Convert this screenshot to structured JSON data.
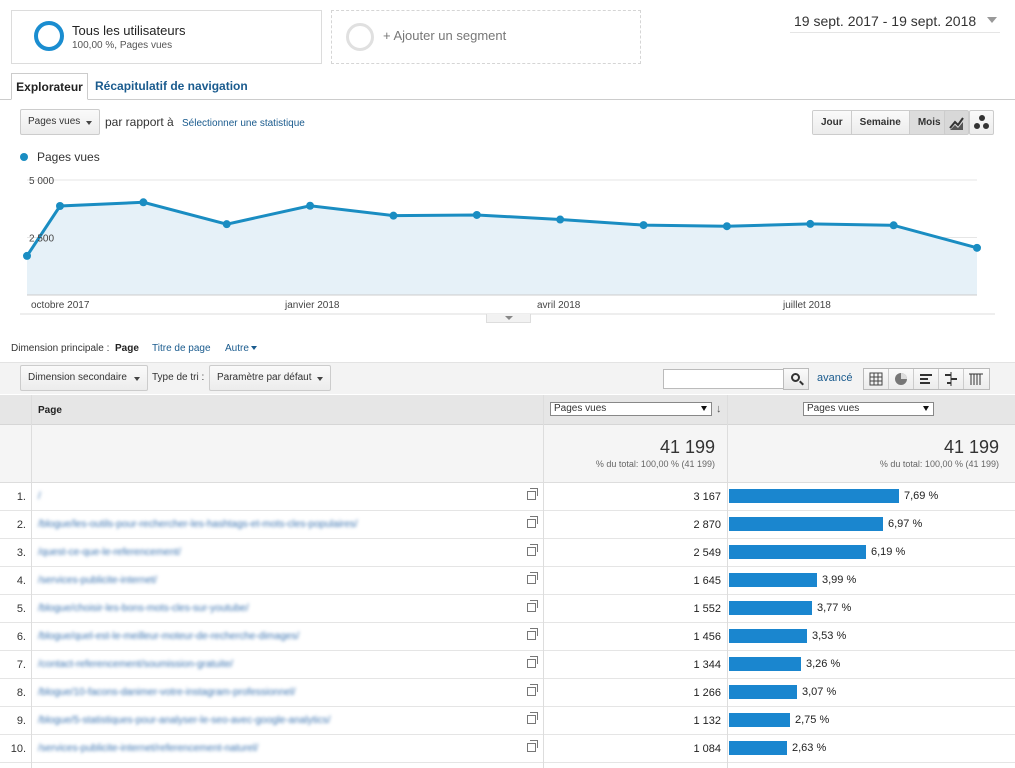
{
  "segments": {
    "active": {
      "title": "Tous les utilisateurs",
      "subtitle": "100,00 %, Pages vues"
    },
    "add_label": "+ Ajouter un segment"
  },
  "date_range": "19 sept. 2017 - 19 sept. 2018",
  "tabs": [
    {
      "label": "Explorateur",
      "active": true
    },
    {
      "label": "Récapitulatif de navigation",
      "active": false
    }
  ],
  "controls": {
    "metric_select": "Pages vues",
    "compare_label": "par rapport à",
    "select_stat": "Sélectionner une statistique",
    "granularity": [
      {
        "label": "Jour",
        "active": false
      },
      {
        "label": "Semaine",
        "active": false
      },
      {
        "label": "Mois",
        "active": true
      }
    ],
    "chart_type_icons": [
      "line-chart-icon",
      "motion-chart-icon"
    ]
  },
  "chart_data": {
    "type": "area",
    "series": [
      {
        "name": "Pages vues",
        "values": [
          1700,
          3870,
          4030,
          3080,
          3880,
          3450,
          3480,
          3280,
          3040,
          2990,
          3090,
          3030,
          2050
        ]
      }
    ],
    "x": [
      "2017-09-19",
      "2017-10",
      "2017-11",
      "2017-12",
      "2018-01",
      "2018-02",
      "2018-03",
      "2018-04",
      "2018-05",
      "2018-06",
      "2018-07",
      "2018-08",
      "2018-09"
    ],
    "x_tick_labels": [
      "octobre 2017",
      "janvier 2018",
      "avril 2018",
      "juillet 2018"
    ],
    "y_tick_labels": [
      "5 000",
      "2 500"
    ],
    "ylim": [
      0,
      5000
    ],
    "color": "#1a8dc2",
    "fill": "#e6f1f8",
    "grid": true,
    "legend": "top-left"
  },
  "dimension": {
    "label": "Dimension principale :",
    "current": "Page",
    "options": [
      "Titre de page",
      "Autre"
    ]
  },
  "toolbar": {
    "secondary_dim": "Dimension secondaire",
    "sort_label": "Type de tri :",
    "sort_value": "Paramètre par défaut",
    "search_placeholder": "",
    "advanced": "avancé",
    "view_icons": [
      "table-view-icon",
      "pie-view-icon",
      "performance-view-icon",
      "comparison-view-icon",
      "pivot-view-icon"
    ]
  },
  "table": {
    "col_page": "Page",
    "col_metric": "Pages vues",
    "col_metric2": "Pages vues",
    "total_value": "41 199",
    "total_sub": "% du total: 100,00 % (41 199)",
    "total_value2": "41 199",
    "total_sub2": "% du total: 100,00 % (41 199)",
    "rows": [
      {
        "num": "1.",
        "page": "/",
        "value": "3 167",
        "pct_label": "7,69 %",
        "pct": 7.69
      },
      {
        "num": "2.",
        "page": "/blogue/les-outils-pour-rechercher-les-hashtags-et-mots-cles-populaires/",
        "value": "2 870",
        "pct_label": "6,97 %",
        "pct": 6.97
      },
      {
        "num": "3.",
        "page": "/quest-ce-que-le-referencement/",
        "value": "2 549",
        "pct_label": "6,19 %",
        "pct": 6.19
      },
      {
        "num": "4.",
        "page": "/services-publicite-internet/",
        "value": "1 645",
        "pct_label": "3,99 %",
        "pct": 3.99
      },
      {
        "num": "5.",
        "page": "/blogue/choisir-les-bons-mots-cles-sur-youtube/",
        "value": "1 552",
        "pct_label": "3,77 %",
        "pct": 3.77
      },
      {
        "num": "6.",
        "page": "/blogue/quel-est-le-meilleur-moteur-de-recherche-dimages/",
        "value": "1 456",
        "pct_label": "3,53 %",
        "pct": 3.53
      },
      {
        "num": "7.",
        "page": "/contact-referencement/soumission-gratuite/",
        "value": "1 344",
        "pct_label": "3,26 %",
        "pct": 3.26
      },
      {
        "num": "8.",
        "page": "/blogue/10-facons-danimer-votre-instagram-professionnel/",
        "value": "1 266",
        "pct_label": "3,07 %",
        "pct": 3.07
      },
      {
        "num": "9.",
        "page": "/blogue/5-statistiques-pour-analyser-le-seo-avec-google-analytics/",
        "value": "1 132",
        "pct_label": "2,75 %",
        "pct": 2.75
      },
      {
        "num": "10.",
        "page": "/services-publicite-internet/referencement-naturel/",
        "value": "1 084",
        "pct_label": "2,63 %",
        "pct": 2.63
      }
    ]
  }
}
